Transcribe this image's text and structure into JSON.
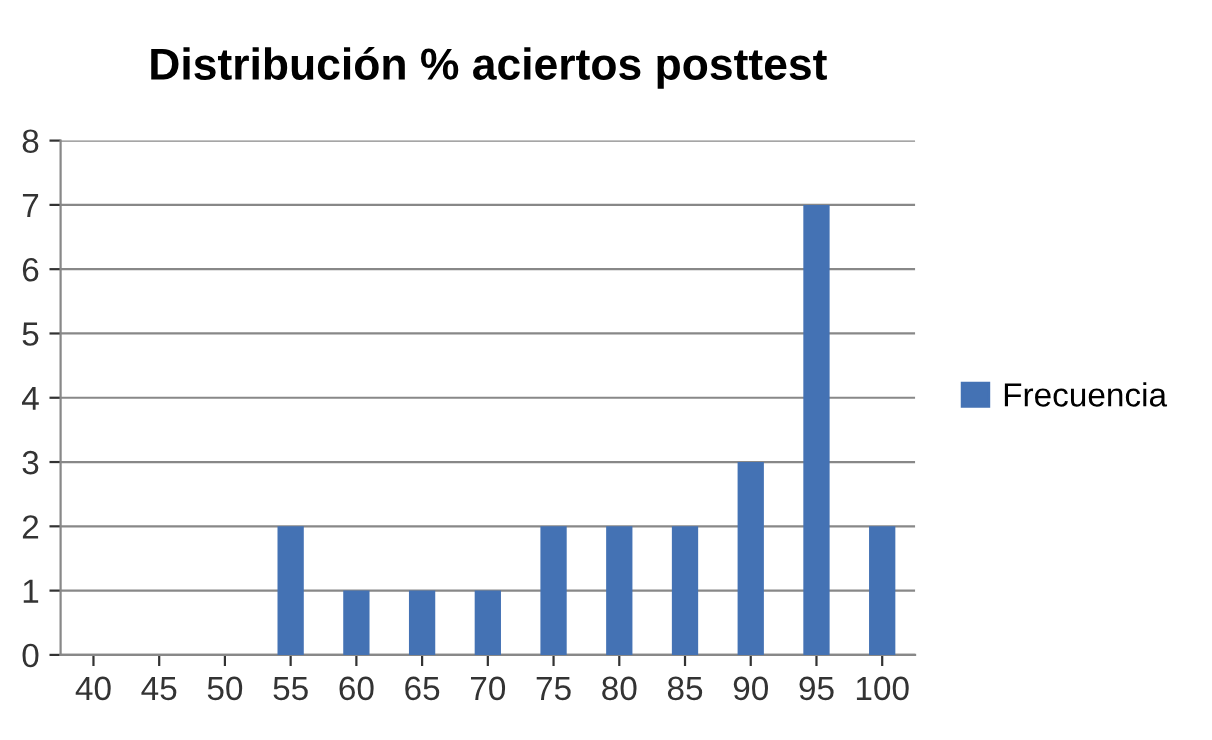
{
  "chart_data": {
    "type": "bar",
    "title": "Distribución % aciertos posttest",
    "categories": [
      "40",
      "45",
      "50",
      "55",
      "60",
      "65",
      "70",
      "75",
      "80",
      "85",
      "90",
      "95",
      "100"
    ],
    "series": [
      {
        "name": "Frecuencia",
        "color": "#4472b4",
        "values": [
          0,
          0,
          0,
          2,
          1,
          1,
          1,
          2,
          2,
          2,
          3,
          7,
          2
        ]
      }
    ],
    "ylim": [
      0,
      8
    ],
    "yticks": [
      0,
      1,
      2,
      3,
      4,
      5,
      6,
      7,
      8
    ],
    "grid": "y",
    "legend": "right"
  }
}
